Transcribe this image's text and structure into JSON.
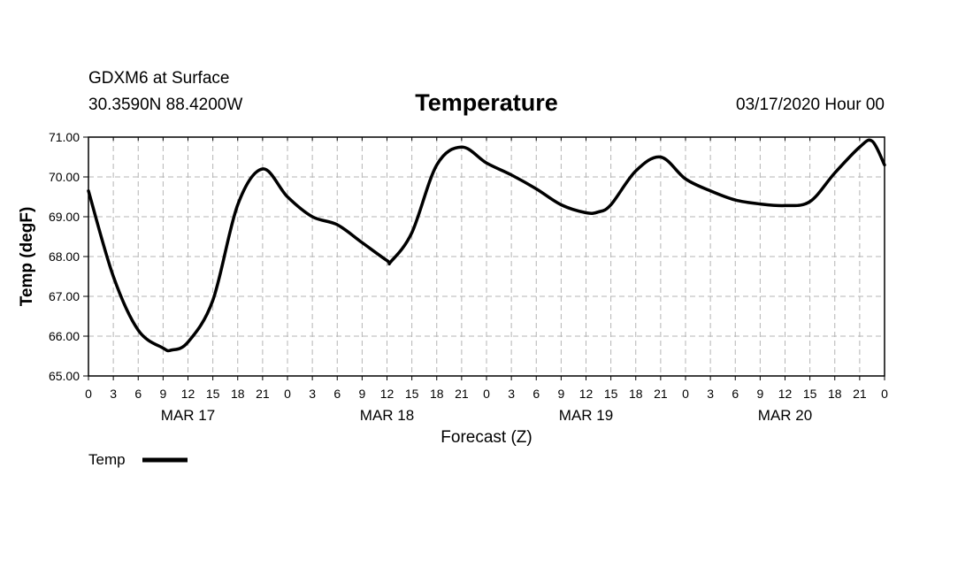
{
  "header": {
    "station": "GDXM6 at Surface",
    "coords": "30.3590N 88.4200W",
    "title": "Temperature",
    "datetime": "03/17/2020 Hour 00"
  },
  "legend": {
    "label": "Temp"
  },
  "colors": {
    "line": "#000000",
    "grid": "#b4b4b4",
    "axis": "#000000"
  },
  "chart_data": {
    "type": "line",
    "title": "Temperature",
    "xlabel": "Forecast (Z)",
    "ylabel": "Temp (degF)",
    "ylim": [
      65,
      71
    ],
    "xlim": [
      0,
      96
    ],
    "x_units": "forecast hour",
    "y_tick_labels": [
      "65.00",
      "66.00",
      "67.00",
      "68.00",
      "69.00",
      "70.00",
      "71.00"
    ],
    "x_tick_labels": [
      "0",
      "3",
      "6",
      "9",
      "12",
      "15",
      "18",
      "21",
      "0",
      "3",
      "6",
      "9",
      "12",
      "15",
      "18",
      "21",
      "0",
      "3",
      "6",
      "9",
      "12",
      "15",
      "18",
      "21",
      "0",
      "3",
      "6",
      "9",
      "12",
      "15",
      "18",
      "21",
      "0"
    ],
    "day_labels": [
      {
        "hour": 12,
        "label": "MAR 17"
      },
      {
        "hour": 36,
        "label": "MAR 18"
      },
      {
        "hour": 60,
        "label": "MAR 19"
      },
      {
        "hour": 84,
        "label": "MAR 20"
      }
    ],
    "grid": true,
    "legend_position": "bottom-left",
    "series": [
      {
        "name": "Temp",
        "x": [
          0,
          3,
          6,
          9,
          10,
          12,
          15,
          18,
          21,
          24,
          27,
          30,
          33,
          36,
          36.5,
          39,
          42,
          45,
          48,
          51,
          54,
          57,
          60,
          61.5,
          63,
          66,
          69,
          72,
          75,
          78,
          81,
          84,
          87,
          90,
          93,
          94.5,
          96
        ],
        "y": [
          69.65,
          67.5,
          66.15,
          65.7,
          65.65,
          65.85,
          66.9,
          69.3,
          70.2,
          69.5,
          69.0,
          68.8,
          68.35,
          67.9,
          67.88,
          68.6,
          70.3,
          70.75,
          70.35,
          70.05,
          69.7,
          69.3,
          69.1,
          69.12,
          69.3,
          70.15,
          70.5,
          69.95,
          69.65,
          69.42,
          69.32,
          69.28,
          69.38,
          70.1,
          70.75,
          70.9,
          70.3
        ]
      }
    ]
  }
}
